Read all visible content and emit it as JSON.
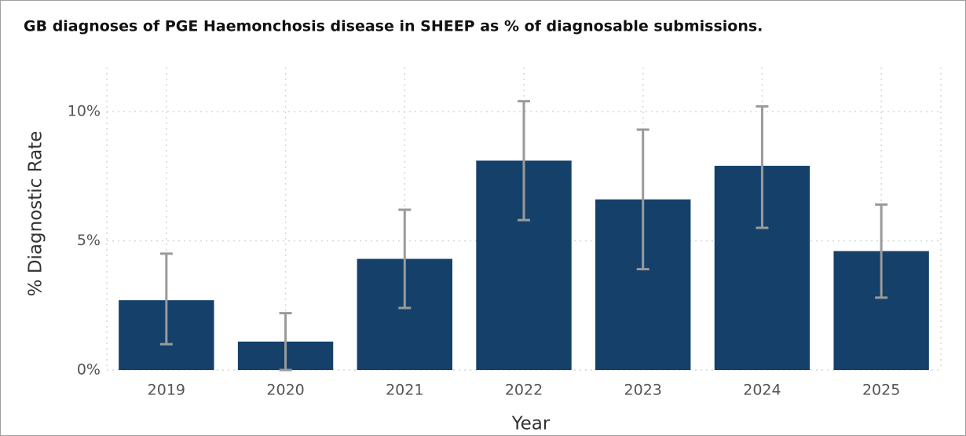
{
  "chart_data": {
    "type": "bar",
    "title": "GB diagnoses of PGE Haemonchosis disease in SHEEP as % of diagnosable submissions.",
    "x_label": "Year",
    "y_label": "% Diagnostic Rate",
    "categories": [
      "2019",
      "2020",
      "2021",
      "2022",
      "2023",
      "2024",
      "2025"
    ],
    "values": [
      2.7,
      1.1,
      4.3,
      8.1,
      6.6,
      7.9,
      4.6
    ],
    "error_low": [
      1.0,
      0.0,
      2.4,
      5.8,
      3.9,
      5.5,
      2.8
    ],
    "error_high": [
      4.5,
      2.2,
      6.2,
      10.4,
      9.3,
      10.2,
      6.4
    ],
    "color": "#14406a",
    "error_color": "#9a9a9a",
    "ylim": [
      0,
      11.7
    ],
    "yticks": [
      {
        "value": 0,
        "label": "0%"
      },
      {
        "value": 5,
        "label": "5%"
      },
      {
        "value": 10,
        "label": "10%"
      }
    ],
    "grid": true
  }
}
